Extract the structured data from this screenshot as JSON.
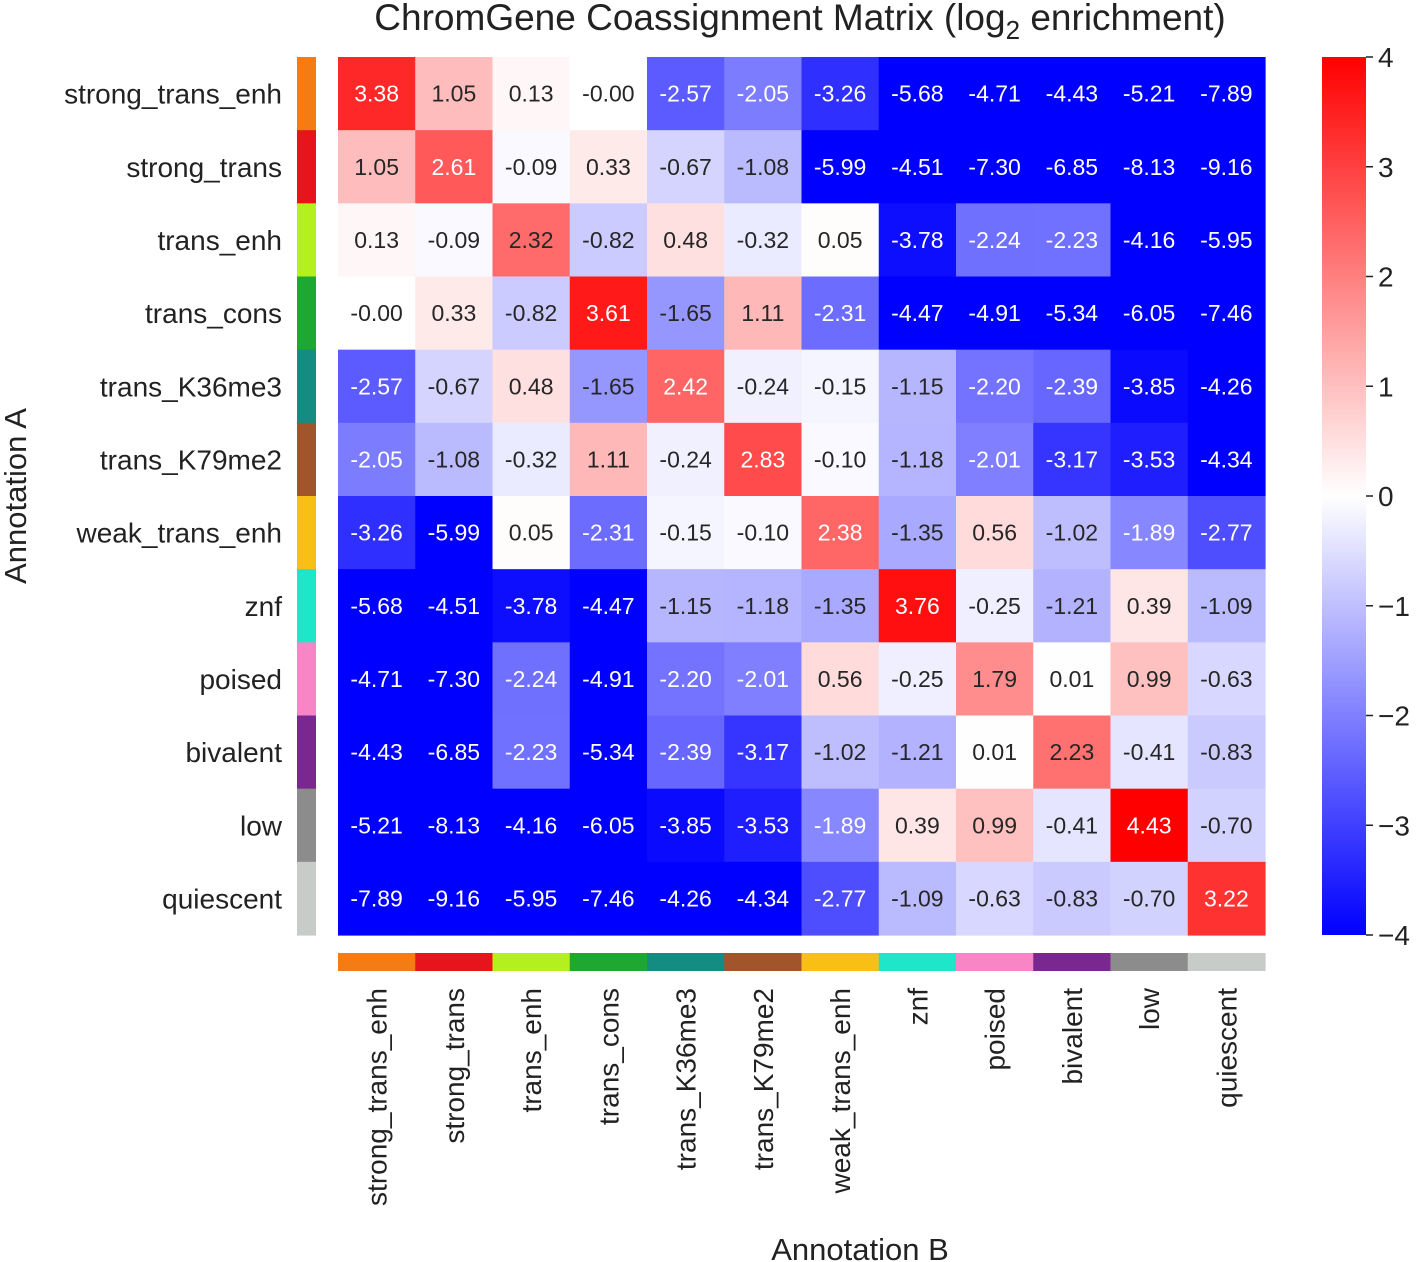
{
  "chart_data": {
    "type": "heatmap",
    "title": "ChromGene Coassignment Matrix (log",
    "title_subscript": "2",
    "title_suffix": " enrichment)",
    "xlabel": "Annotation B",
    "ylabel": "Annotation A",
    "rows": [
      "strong_trans_enh",
      "strong_trans",
      "trans_enh",
      "trans_cons",
      "trans_K36me3",
      "trans_K79me2",
      "weak_trans_enh",
      "znf",
      "poised",
      "bivalent",
      "low",
      "quiescent"
    ],
    "columns": [
      "strong_trans_enh",
      "strong_trans",
      "trans_enh",
      "trans_cons",
      "trans_K36me3",
      "trans_K79me2",
      "weak_trans_enh",
      "znf",
      "poised",
      "bivalent",
      "low",
      "quiescent"
    ],
    "annotation_colors": [
      "#f57c14",
      "#e8141c",
      "#b4f01e",
      "#1ea832",
      "#148c82",
      "#a0552a",
      "#f8c015",
      "#1ee6c8",
      "#f885c5",
      "#7a2890",
      "#8c8c8c",
      "#c8ccc8"
    ],
    "values": [
      [
        3.38,
        1.05,
        0.13,
        -0.0,
        -2.57,
        -2.05,
        -3.26,
        -5.68,
        -4.71,
        -4.43,
        -5.21,
        -7.89
      ],
      [
        1.05,
        2.61,
        -0.09,
        0.33,
        -0.67,
        -1.08,
        -5.99,
        -4.51,
        -7.3,
        -6.85,
        -8.13,
        -9.16
      ],
      [
        0.13,
        -0.09,
        2.32,
        -0.82,
        0.48,
        -0.32,
        0.05,
        -3.78,
        -2.24,
        -2.23,
        -4.16,
        -5.95
      ],
      [
        -0.0,
        0.33,
        -0.82,
        3.61,
        -1.65,
        1.11,
        -2.31,
        -4.47,
        -4.91,
        -5.34,
        -6.05,
        -7.46
      ],
      [
        -2.57,
        -0.67,
        0.48,
        -1.65,
        2.42,
        -0.24,
        -0.15,
        -1.15,
        -2.2,
        -2.39,
        -3.85,
        -4.26
      ],
      [
        -2.05,
        -1.08,
        -0.32,
        1.11,
        -0.24,
        2.83,
        -0.1,
        -1.18,
        -2.01,
        -3.17,
        -3.53,
        -4.34
      ],
      [
        -3.26,
        -5.99,
        0.05,
        -2.31,
        -0.15,
        -0.1,
        2.38,
        -1.35,
        0.56,
        -1.02,
        -1.89,
        -2.77
      ],
      [
        -5.68,
        -4.51,
        -3.78,
        -4.47,
        -1.15,
        -1.18,
        -1.35,
        3.76,
        -0.25,
        -1.21,
        0.39,
        -1.09
      ],
      [
        -4.71,
        -7.3,
        -2.24,
        -4.91,
        -2.2,
        -2.01,
        0.56,
        -0.25,
        1.79,
        0.01,
        0.99,
        -0.63
      ],
      [
        -4.43,
        -6.85,
        -2.23,
        -5.34,
        -2.39,
        -3.17,
        -1.02,
        -1.21,
        0.01,
        2.23,
        -0.41,
        -0.83
      ],
      [
        -5.21,
        -8.13,
        -4.16,
        -6.05,
        -3.85,
        -3.53,
        -1.89,
        0.39,
        0.99,
        -0.41,
        4.43,
        -0.7
      ],
      [
        -7.89,
        -9.16,
        -5.95,
        -7.46,
        -4.26,
        -4.34,
        -2.77,
        -1.09,
        -0.63,
        -0.83,
        -0.7,
        3.22
      ]
    ],
    "value_labels": [
      [
        "3.38",
        "1.05",
        "0.13",
        "-0.00",
        "-2.57",
        "-2.05",
        "-3.26",
        "-5.68",
        "-4.71",
        "-4.43",
        "-5.21",
        "-7.89"
      ],
      [
        "1.05",
        "2.61",
        "-0.09",
        "0.33",
        "-0.67",
        "-1.08",
        "-5.99",
        "-4.51",
        "-7.30",
        "-6.85",
        "-8.13",
        "-9.16"
      ],
      [
        "0.13",
        "-0.09",
        "2.32",
        "-0.82",
        "0.48",
        "-0.32",
        "0.05",
        "-3.78",
        "-2.24",
        "-2.23",
        "-4.16",
        "-5.95"
      ],
      [
        "-0.00",
        "0.33",
        "-0.82",
        "3.61",
        "-1.65",
        "1.11",
        "-2.31",
        "-4.47",
        "-4.91",
        "-5.34",
        "-6.05",
        "-7.46"
      ],
      [
        "-2.57",
        "-0.67",
        "0.48",
        "-1.65",
        "2.42",
        "-0.24",
        "-0.15",
        "-1.15",
        "-2.20",
        "-2.39",
        "-3.85",
        "-4.26"
      ],
      [
        "-2.05",
        "-1.08",
        "-0.32",
        "1.11",
        "-0.24",
        "2.83",
        "-0.10",
        "-1.18",
        "-2.01",
        "-3.17",
        "-3.53",
        "-4.34"
      ],
      [
        "-3.26",
        "-5.99",
        "0.05",
        "-2.31",
        "-0.15",
        "-0.10",
        "2.38",
        "-1.35",
        "0.56",
        "-1.02",
        "-1.89",
        "-2.77"
      ],
      [
        "-5.68",
        "-4.51",
        "-3.78",
        "-4.47",
        "-1.15",
        "-1.18",
        "-1.35",
        "3.76",
        "-0.25",
        "-1.21",
        "0.39",
        "-1.09"
      ],
      [
        "-4.71",
        "-7.30",
        "-2.24",
        "-4.91",
        "-2.20",
        "-2.01",
        "0.56",
        "-0.25",
        "1.79",
        "0.01",
        "0.99",
        "-0.63"
      ],
      [
        "-4.43",
        "-6.85",
        "-2.23",
        "-5.34",
        "-2.39",
        "-3.17",
        "-1.02",
        "-1.21",
        "0.01",
        "2.23",
        "-0.41",
        "-0.83"
      ],
      [
        "-5.21",
        "-8.13",
        "-4.16",
        "-6.05",
        "-3.85",
        "-3.53",
        "-1.89",
        "0.39",
        "0.99",
        "-0.41",
        "4.43",
        "-0.70"
      ],
      [
        "-7.89",
        "-9.16",
        "-5.95",
        "-7.46",
        "-4.26",
        "-4.34",
        "-2.77",
        "-1.09",
        "-0.63",
        "-0.83",
        "-0.70",
        "3.22"
      ]
    ],
    "colormap": "bwr",
    "vmin": -4,
    "vmax": 4,
    "colorbar_ticks": [
      4,
      3,
      2,
      1,
      0,
      -1,
      -2,
      -3,
      -4
    ],
    "colorbar_tick_labels": [
      "4",
      "3",
      "2",
      "1",
      "0",
      "−1",
      "−2",
      "−3",
      "−4"
    ],
    "cmap_low": "#0000ff",
    "cmap_mid": "#ffffff",
    "cmap_high": "#ff0000"
  }
}
